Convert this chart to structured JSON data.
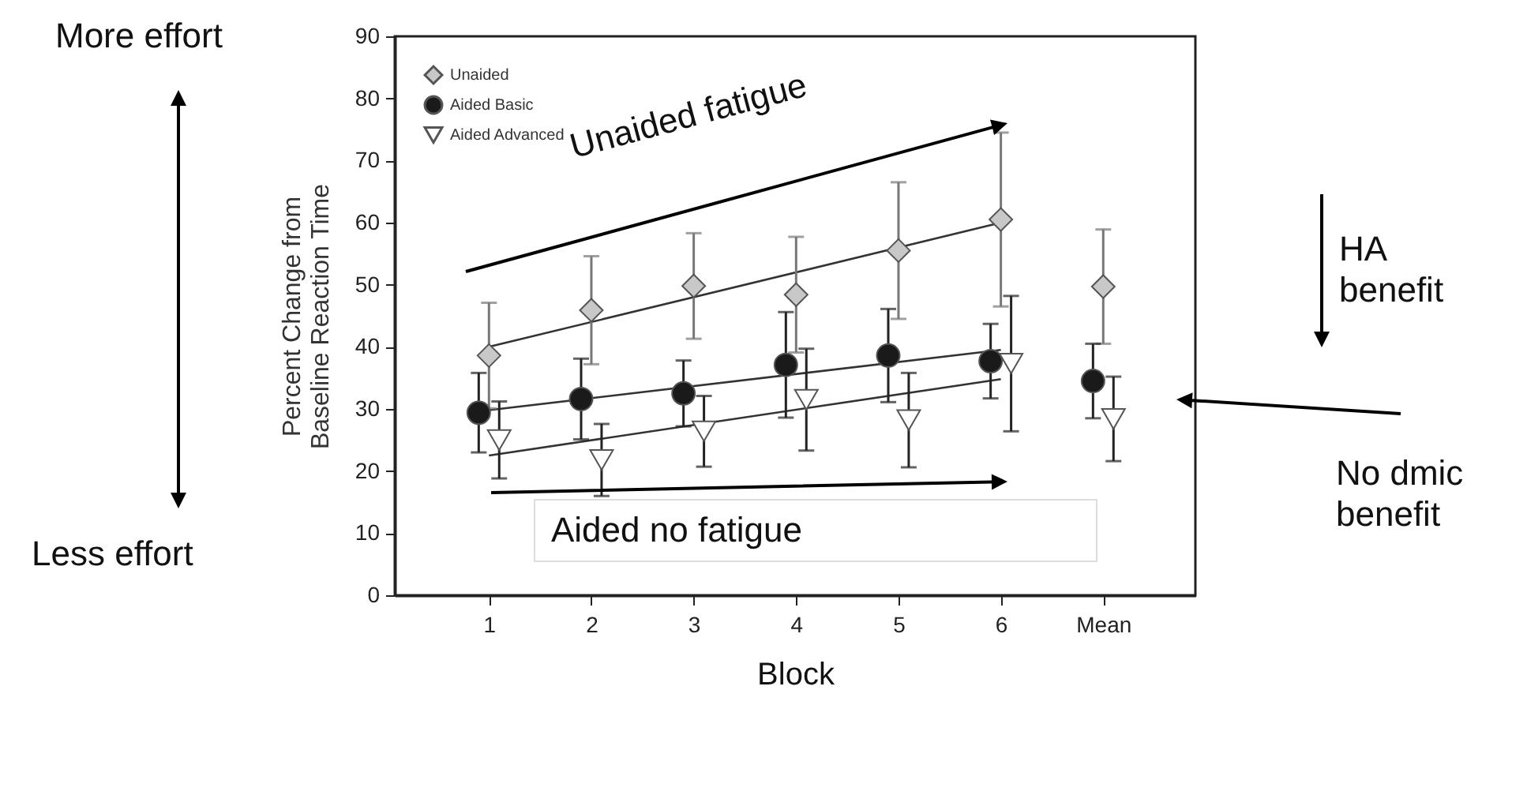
{
  "chart_data": {
    "type": "scatter",
    "xlabel": "Block",
    "ylabel": "Percent Change from Baseline Reaction Time",
    "categories": [
      "1",
      "2",
      "3",
      "4",
      "5",
      "6",
      "Mean"
    ],
    "ylim": [
      0,
      90
    ],
    "yticks": [
      0,
      10,
      20,
      30,
      40,
      50,
      60,
      70,
      80,
      90
    ],
    "grid": false,
    "legend": "top left",
    "series": [
      {
        "name": "Unaided",
        "color": "#c8c8c8",
        "marker": "diamond",
        "values": [
          38.6,
          45.9,
          49.8,
          48.4,
          55.5,
          60.5,
          49.7
        ],
        "errors": [
          8.5,
          8.7,
          8.5,
          9.3,
          11,
          14,
          9.2
        ]
      },
      {
        "name": "Aided Basic",
        "color": "#1a1a1a",
        "marker": "circle",
        "values": [
          29.4,
          31.6,
          32.5,
          37.1,
          38.6,
          37.7,
          34.5
        ],
        "errors": [
          6.4,
          6.5,
          5.3,
          8.5,
          7.5,
          6,
          6
        ]
      },
      {
        "name": "Aided Advanced",
        "color": "#ffffff",
        "marker": "triangle",
        "values": [
          25,
          21.8,
          26.4,
          31.5,
          28.2,
          37.3,
          28.4
        ],
        "errors": [
          6.2,
          5.8,
          5.7,
          8.2,
          7.6,
          10.9,
          6.8
        ]
      },
      {
        "type": "line",
        "color": "#333333",
        "x": [
          "1",
          "6"
        ],
        "values": [
          40,
          60
        ]
      },
      {
        "type": "line",
        "color": "#333333",
        "x": [
          "1",
          "6"
        ],
        "values": [
          29.8,
          39.5
        ]
      },
      {
        "type": "line",
        "color": "#333333",
        "x": [
          "1",
          "6"
        ],
        "values": [
          22.5,
          34.8
        ]
      }
    ],
    "annotations": [
      "More effort",
      "Less effort",
      "Unaided fatigue",
      "Aided no fatigue",
      "HA benefit",
      "No dmic benefit"
    ]
  }
}
